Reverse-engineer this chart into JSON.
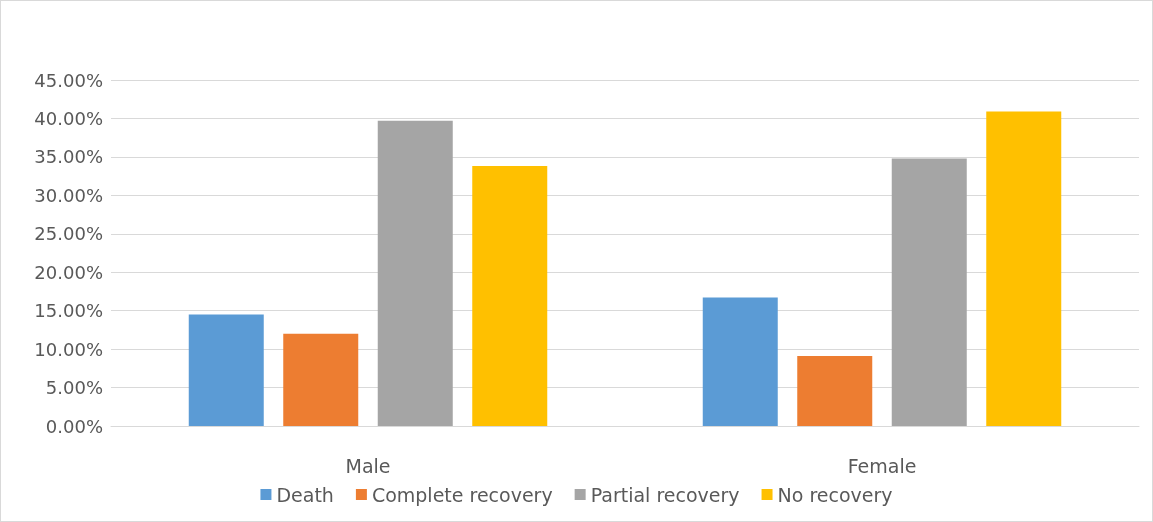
{
  "chart_data": {
    "type": "bar",
    "categories": [
      "Male",
      "Female"
    ],
    "series": [
      {
        "name": "Death",
        "color": "#5b9bd5",
        "values": [
          14.5,
          16.7
        ]
      },
      {
        "name": "Complete recovery",
        "color": "#ed7d31",
        "values": [
          12.0,
          9.1
        ]
      },
      {
        "name": "Partial recovery",
        "color": "#a5a5a5",
        "values": [
          39.7,
          34.8
        ]
      },
      {
        "name": "No recovery",
        "color": "#ffc000",
        "values": [
          33.8,
          40.9
        ]
      }
    ],
    "ylim": [
      0,
      45
    ],
    "yticks": [
      {
        "value": 0,
        "label": "0.00%"
      },
      {
        "value": 5,
        "label": "5.00%"
      },
      {
        "value": 10,
        "label": "10.00%"
      },
      {
        "value": 15,
        "label": "15.00%"
      },
      {
        "value": 20,
        "label": "20.00%"
      },
      {
        "value": 25,
        "label": "25.00%"
      },
      {
        "value": 30,
        "label": "30.00%"
      },
      {
        "value": 35,
        "label": "35.00%"
      },
      {
        "value": 40,
        "label": "40.00%"
      },
      {
        "value": 45,
        "label": "45.00%"
      }
    ],
    "grid": "y",
    "legend": "bottom"
  }
}
